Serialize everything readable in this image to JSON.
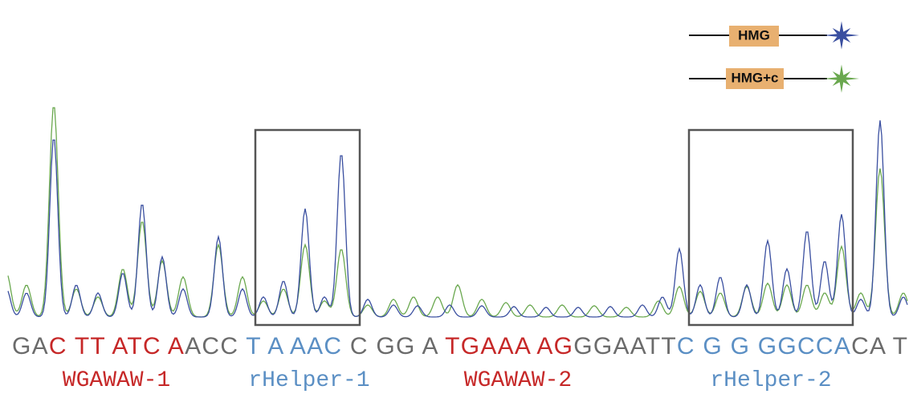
{
  "legend": {
    "items": [
      {
        "label": "HMG",
        "color": "#3a4fa0"
      },
      {
        "label": "HMG+c",
        "color": "#6aa84f"
      }
    ]
  },
  "sequence": {
    "segments": [
      {
        "text": "GA",
        "color": "#6b6b6b"
      },
      {
        "text": "C TT ATC A",
        "color": "#c62828"
      },
      {
        "text": "ACC ",
        "color": "#6b6b6b"
      },
      {
        "text": "T A AAC ",
        "color": "#5b8fc4"
      },
      {
        "text": "C GG A ",
        "color": "#6b6b6b"
      },
      {
        "text": "TGAAA AG",
        "color": "#c62828"
      },
      {
        "text": "GGAATT",
        "color": "#6b6b6b"
      },
      {
        "text": "C G G GGCCA",
        "color": "#5b8fc4"
      },
      {
        "text": "CA T",
        "color": "#6b6b6b"
      }
    ]
  },
  "regions": [
    {
      "label": "WGAWAW-1",
      "color": "#c62828"
    },
    {
      "label": "rHelper-1",
      "color": "#5b8fc4"
    },
    {
      "label": "WGAWAW-2",
      "color": "#c62828"
    },
    {
      "label": "rHelper-2",
      "color": "#5b8fc4"
    }
  ]
}
